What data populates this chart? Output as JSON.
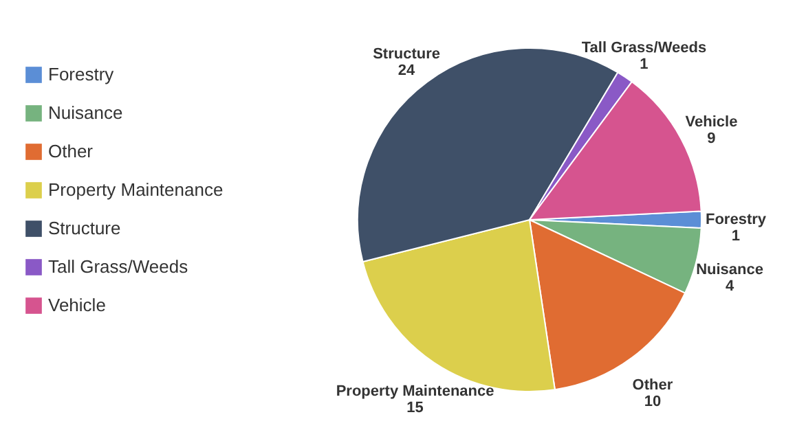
{
  "chart_data": {
    "type": "pie",
    "categories": [
      "Forestry",
      "Nuisance",
      "Other",
      "Property Maintenance",
      "Structure",
      "Tall Grass/Weeds",
      "Vehicle"
    ],
    "values": [
      1,
      4,
      10,
      15,
      24,
      1,
      9
    ],
    "colors": [
      "#5b8ed6",
      "#76b37f",
      "#e06c32",
      "#dccf4c",
      "#3f5068",
      "#8a59c6",
      "#d6548f"
    ],
    "data_labels": true,
    "legend": "left"
  }
}
